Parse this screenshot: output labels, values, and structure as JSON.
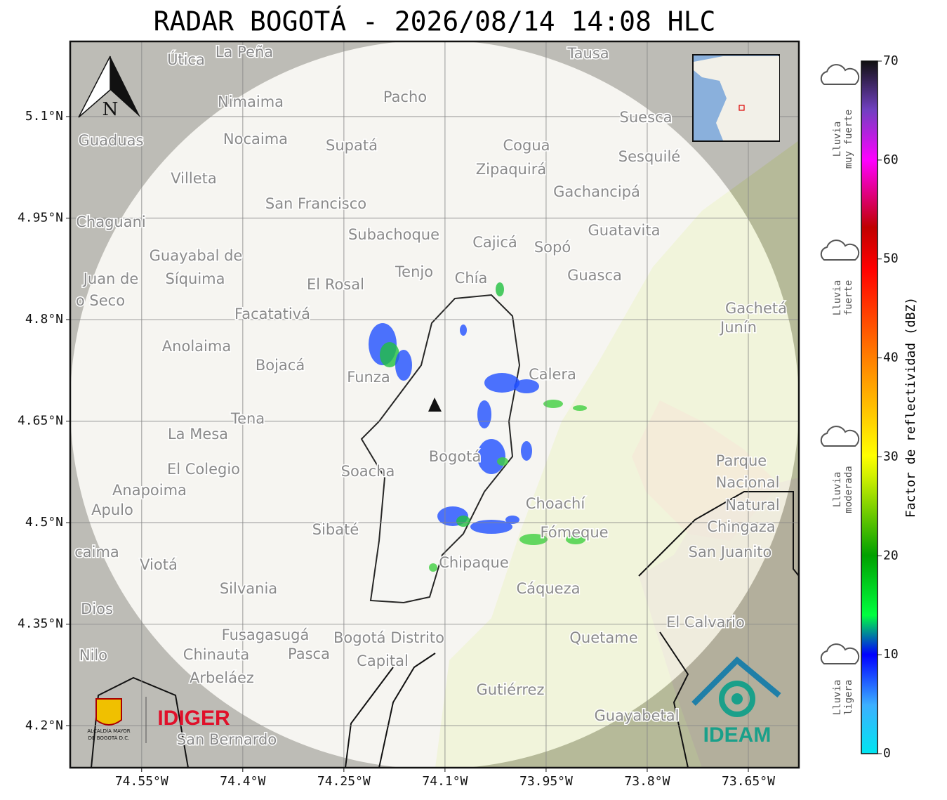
{
  "title": "RADAR BOGOTÁ - 2026/08/14 14:08 HLC",
  "map": {
    "xlim": [
      -74.656,
      -73.575
    ],
    "ylim": [
      4.138,
      5.211
    ],
    "grid": true,
    "north": "N",
    "xticks": [
      {
        "value": -74.55,
        "label": "74.55°W"
      },
      {
        "value": -74.4,
        "label": "74.4°W"
      },
      {
        "value": -74.25,
        "label": "74.25°W"
      },
      {
        "value": -74.1,
        "label": "74.1°W"
      },
      {
        "value": -73.95,
        "label": "73.95°W"
      },
      {
        "value": -73.8,
        "label": "73.8°W"
      },
      {
        "value": -73.65,
        "label": "73.65°W"
      }
    ],
    "yticks": [
      {
        "value": 5.1,
        "label": "5.1°N"
      },
      {
        "value": 4.95,
        "label": "4.95°N"
      },
      {
        "value": 4.8,
        "label": "4.8°N"
      },
      {
        "value": 4.65,
        "label": "4.65°N"
      },
      {
        "value": 4.5,
        "label": "4.5°N"
      },
      {
        "value": 4.35,
        "label": "4.35°N"
      },
      {
        "value": 4.2,
        "label": "4.2°N"
      }
    ],
    "places": [
      "La Peña",
      "Útica",
      "Tausa",
      "Pacho",
      "Nimaima",
      "Suesca",
      "Guaduas",
      "Nocaima",
      "Supatá",
      "Cogua",
      "Sesquilé",
      "Zipaquirá",
      "Villeta",
      "Gachancipá",
      "San Francisco",
      "Chaguani",
      "Guatavita",
      "Subachoque",
      "Cajicá",
      "Sopó",
      "Guayabal de",
      "Síquima",
      "Juan de",
      "Tenjo",
      "Chía",
      "Guasca",
      "o Seco",
      "El Rosal",
      "Facatativá",
      "Gachetá",
      "Junín",
      "Anolaima",
      "Bojacá",
      "Funza",
      "Calera",
      "Tena",
      "La Mesa",
      "El Colegio",
      "Soacha",
      "Bogotá",
      "Parque",
      "Nacional",
      "Natural",
      "Chingaza",
      "Anapoima",
      "Apulo",
      "Choachí",
      "Sibaté",
      "Fómeque",
      "San Juanito",
      "caima",
      "Viotá",
      "Chipaque",
      "Silvania",
      "Cáqueza",
      "Dios",
      "El Calvario",
      "Fusagasugá",
      "Bogotá Distrito",
      "Quetame",
      "Nilo",
      "Chinauta",
      "Pasca",
      "Capital",
      "Arbeláez",
      "Gutiérrez",
      "Guayabetal",
      "San Bernardo"
    ]
  },
  "colorbar": {
    "label": "Factor de reflectividad (dBZ)",
    "lim": [
      0,
      70
    ],
    "ticks": [
      0,
      10,
      20,
      30,
      40,
      50,
      60,
      70
    ]
  },
  "rain_classes": [
    [
      "Lluvia",
      "muy fuerte"
    ],
    [
      "Lluvia",
      "fuerte"
    ],
    [
      "Lluvia",
      "moderada"
    ],
    [
      "Lluvia",
      "ligera"
    ]
  ],
  "logos": {
    "bogota": [
      "ALCALDÍA MAYOR",
      "DE BOGOTÁ D.C."
    ],
    "idiger": "IDIGER",
    "ideam": "IDEAM"
  }
}
